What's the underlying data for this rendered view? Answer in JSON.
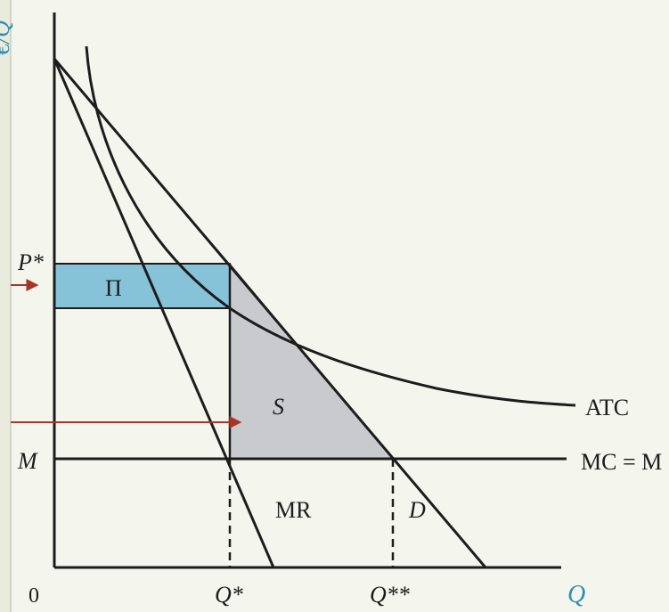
{
  "axes": {
    "y_label": "€/Q",
    "x_label": "Q",
    "origin_label": "0",
    "y_ticks": {
      "p_star": "P*",
      "m": "M"
    },
    "x_ticks": {
      "q_star": "Q*",
      "q_star_star": "Q**"
    }
  },
  "curves": {
    "atc": "ATC",
    "mc": "MC = M",
    "mr": "MR",
    "demand": "D"
  },
  "areas": {
    "profit": "Π",
    "surplus": "S"
  },
  "colors": {
    "profit_fill": "#86c3d8",
    "surplus_fill": "#c9cacd",
    "axis_label": "#2e8fb3",
    "arrow": "#a8352a",
    "line": "#1c1c1c",
    "background": "#f4f5ec"
  }
}
